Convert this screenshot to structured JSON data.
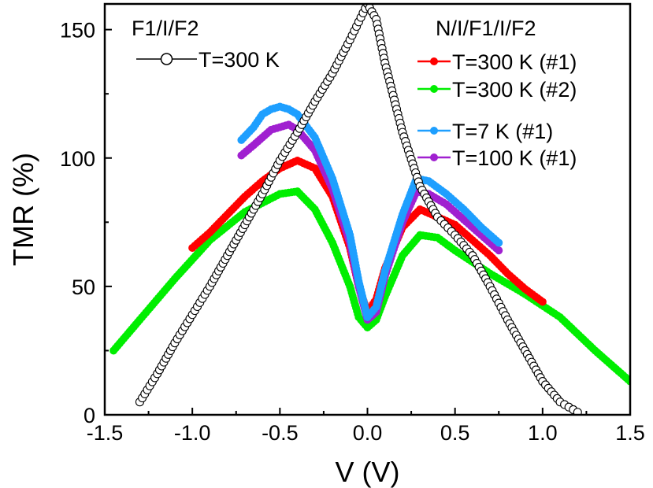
{
  "chart_data": {
    "type": "scatter",
    "xlabel": "V (V)",
    "ylabel": "TMR (%)",
    "xlim": [
      -1.5,
      1.5
    ],
    "ylim": [
      0,
      160
    ],
    "xticks": [
      -1.5,
      -1.0,
      -0.5,
      0.0,
      0.5,
      1.0,
      1.5
    ],
    "xtick_labels": [
      "-1.5",
      "-1.0",
      "-0.5",
      "0.0",
      "0.5",
      "1.0",
      "1.5"
    ],
    "yticks": [
      0,
      50,
      100,
      150
    ],
    "ytick_labels": [
      "0",
      "50",
      "100",
      "150"
    ],
    "legend_groups": [
      {
        "title": "F1/I/F2",
        "position": "top-left"
      },
      {
        "title": "N/I/F1/I/F2",
        "position": "top-right"
      }
    ],
    "series": [
      {
        "name": "T=300 K",
        "group": "F1/I/F2",
        "color": "#000000",
        "marker": "open-circle",
        "line": true,
        "x": [
          -1.3,
          -1.2,
          -1.1,
          -1.0,
          -0.9,
          -0.8,
          -0.7,
          -0.6,
          -0.5,
          -0.4,
          -0.3,
          -0.2,
          -0.1,
          0.0,
          0.05,
          0.1,
          0.2,
          0.3,
          0.4,
          0.5,
          0.6,
          0.7,
          0.8,
          0.9,
          1.0,
          1.1,
          1.2
        ],
        "y": [
          5,
          16,
          28,
          39,
          50,
          62,
          74,
          86,
          99,
          110,
          122,
          133,
          146,
          160,
          154,
          137,
          110,
          89,
          77,
          70,
          62,
          50,
          37,
          25,
          13,
          5,
          1
        ]
      },
      {
        "name": "T=300 K (#1)",
        "group": "N/I/F1/I/F2",
        "color": "#ff0000",
        "marker": "filled-circle",
        "line": true,
        "x": [
          -1.0,
          -0.9,
          -0.8,
          -0.7,
          -0.6,
          -0.5,
          -0.4,
          -0.3,
          -0.2,
          -0.1,
          -0.05,
          0.0,
          0.05,
          0.1,
          0.2,
          0.3,
          0.4,
          0.5,
          0.6,
          0.7,
          0.8,
          0.9,
          1.0
        ],
        "y": [
          65,
          71,
          78,
          85,
          91,
          96,
          99,
          96,
          85,
          65,
          50,
          40,
          45,
          57,
          73,
          80,
          77,
          74,
          68,
          62,
          55,
          49,
          44
        ]
      },
      {
        "name": "T=300 K (#2)",
        "group": "N/I/F1/I/F2",
        "color": "#00ee00",
        "marker": "filled-circle",
        "line": true,
        "x": [
          -1.45,
          -1.3,
          -1.1,
          -0.9,
          -0.7,
          -0.5,
          -0.4,
          -0.3,
          -0.2,
          -0.1,
          -0.05,
          0.0,
          0.05,
          0.1,
          0.2,
          0.3,
          0.4,
          0.5,
          0.7,
          0.9,
          1.1,
          1.3,
          1.5
        ],
        "y": [
          25,
          37,
          53,
          68,
          79,
          86,
          87,
          80,
          67,
          50,
          38,
          34,
          37,
          46,
          62,
          70,
          69,
          64,
          55,
          47,
          38,
          25,
          13
        ]
      },
      {
        "name": "T=7 K (#1)",
        "group": "N/I/F1/I/F2",
        "color": "#1e9fff",
        "marker": "filled-circle",
        "line": true,
        "x": [
          -0.72,
          -0.65,
          -0.6,
          -0.55,
          -0.5,
          -0.45,
          -0.4,
          -0.3,
          -0.2,
          -0.1,
          -0.05,
          0.0,
          0.05,
          0.1,
          0.2,
          0.28,
          0.35,
          0.45,
          0.55,
          0.65,
          0.75
        ],
        "y": [
          107,
          112,
          117,
          119,
          120,
          119,
          117,
          108,
          92,
          70,
          52,
          38,
          42,
          56,
          78,
          92,
          91,
          86,
          80,
          73,
          67
        ]
      },
      {
        "name": "T=100 K (#1)",
        "group": "N/I/F1/I/F2",
        "color": "#a020d0",
        "marker": "filled-circle",
        "line": true,
        "x": [
          -0.72,
          -0.65,
          -0.6,
          -0.55,
          -0.5,
          -0.45,
          -0.4,
          -0.3,
          -0.2,
          -0.1,
          -0.05,
          0.0,
          0.05,
          0.1,
          0.2,
          0.28,
          0.35,
          0.45,
          0.55,
          0.65,
          0.75
        ],
        "y": [
          101,
          105,
          108,
          111,
          112,
          113,
          111,
          103,
          88,
          67,
          50,
          37,
          40,
          54,
          75,
          87,
          86,
          82,
          76,
          70,
          64
        ]
      }
    ]
  }
}
